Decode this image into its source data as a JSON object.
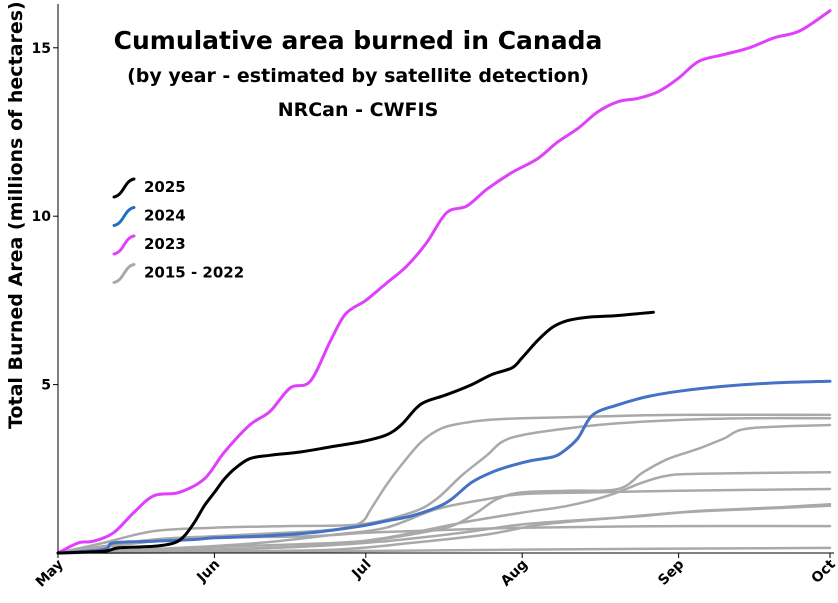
{
  "chart_data": {
    "type": "line",
    "title": "Cumulative area burned in Canada",
    "subtitle": "(by year - estimated by satellite detection)",
    "subtitle2": "NRCan - CWFIS",
    "xlabel": "",
    "ylabel": "Total Burned Area (millions of hectares)",
    "x_axis_type": "date",
    "xlim": [
      "05-01",
      "10-01"
    ],
    "ylim": [
      0,
      16.3
    ],
    "x_ticks": [
      {
        "label": "May",
        "date": "05-01"
      },
      {
        "label": "Jun",
        "date": "06-01"
      },
      {
        "label": "Jul",
        "date": "07-01"
      },
      {
        "label": "Aug",
        "date": "08-01"
      },
      {
        "label": "Sep",
        "date": "09-01"
      },
      {
        "label": "Oct",
        "date": "10-01"
      }
    ],
    "y_ticks": [
      {
        "label": "5",
        "value": 5
      },
      {
        "label": "10",
        "value": 10
      },
      {
        "label": "15",
        "value": 15
      }
    ],
    "grid": false,
    "legend_position": "upper-left",
    "legend": [
      {
        "label": "2025",
        "color": "#000000"
      },
      {
        "label": "2024",
        "color": "#1f6fbf"
      },
      {
        "label": "2023",
        "color": "#e040fb"
      },
      {
        "label": "2015 - 2022",
        "color": "#a9a9a9"
      }
    ],
    "series": [
      {
        "year": "2025",
        "color": "#000000",
        "x": [
          "05-01",
          "05-10",
          "05-13",
          "05-20",
          "05-24",
          "05-26",
          "05-28",
          "05-30",
          "06-01",
          "06-03",
          "06-05",
          "06-08",
          "06-12",
          "06-18",
          "06-24",
          "06-30",
          "07-05",
          "07-08",
          "07-11",
          "07-13",
          "07-17",
          "07-22",
          "07-26",
          "07-30",
          "08-01",
          "08-04",
          "08-07",
          "08-10",
          "08-14",
          "08-20",
          "08-27"
        ],
        "y": [
          0.0,
          0.05,
          0.15,
          0.2,
          0.3,
          0.5,
          0.9,
          1.4,
          1.8,
          2.2,
          2.5,
          2.8,
          2.9,
          3.0,
          3.15,
          3.3,
          3.5,
          3.8,
          4.3,
          4.5,
          4.7,
          5.0,
          5.3,
          5.5,
          5.8,
          6.3,
          6.7,
          6.9,
          7.0,
          7.05,
          7.15
        ]
      },
      {
        "year": "2024",
        "color": "#4472c4",
        "x": [
          "05-01",
          "05-10",
          "05-12",
          "05-20",
          "05-28",
          "06-01",
          "06-10",
          "06-20",
          "06-30",
          "07-05",
          "07-10",
          "07-15",
          "07-18",
          "07-22",
          "07-26",
          "07-30",
          "08-03",
          "08-07",
          "08-09",
          "08-12",
          "08-15",
          "08-20",
          "08-26",
          "09-01",
          "09-10",
          "09-20",
          "10-01"
        ],
        "y": [
          0.0,
          0.1,
          0.3,
          0.35,
          0.4,
          0.45,
          0.5,
          0.6,
          0.8,
          0.95,
          1.1,
          1.35,
          1.6,
          2.1,
          2.4,
          2.6,
          2.75,
          2.85,
          3.0,
          3.4,
          4.1,
          4.4,
          4.65,
          4.8,
          4.95,
          5.05,
          5.1
        ]
      },
      {
        "year": "2023",
        "color": "#e040fb",
        "x": [
          "05-01",
          "05-05",
          "05-08",
          "05-12",
          "05-16",
          "05-20",
          "05-25",
          "05-30",
          "06-03",
          "06-08",
          "06-12",
          "06-16",
          "06-20",
          "06-24",
          "06-27",
          "07-01",
          "07-05",
          "07-09",
          "07-13",
          "07-17",
          "07-21",
          "07-25",
          "07-30",
          "08-04",
          "08-08",
          "08-12",
          "08-16",
          "08-20",
          "08-24",
          "08-28",
          "09-01",
          "09-05",
          "09-10",
          "09-15",
          "09-20",
          "09-25",
          "10-01"
        ],
        "y": [
          0.0,
          0.3,
          0.35,
          0.6,
          1.2,
          1.7,
          1.8,
          2.2,
          3.0,
          3.8,
          4.2,
          4.9,
          5.1,
          6.3,
          7.1,
          7.5,
          8.0,
          8.5,
          9.2,
          10.1,
          10.3,
          10.8,
          11.3,
          11.7,
          12.2,
          12.6,
          13.1,
          13.4,
          13.5,
          13.7,
          14.1,
          14.6,
          14.8,
          15.0,
          15.3,
          15.5,
          16.1
        ]
      },
      {
        "year": "2015-2022 a",
        "color": "#a9a9a9",
        "x": [
          "05-01",
          "05-10",
          "05-20",
          "06-01",
          "06-15",
          "06-25",
          "06-30",
          "07-02",
          "07-05",
          "07-08",
          "07-12",
          "07-16",
          "07-20",
          "07-25",
          "08-01",
          "08-15",
          "09-01",
          "10-01"
        ],
        "y": [
          0.0,
          0.2,
          0.4,
          0.5,
          0.6,
          0.7,
          0.9,
          1.3,
          2.0,
          2.6,
          3.3,
          3.7,
          3.85,
          3.95,
          4.0,
          4.05,
          4.1,
          4.1
        ]
      },
      {
        "year": "2015-2022 b",
        "color": "#a9a9a9",
        "x": [
          "05-01",
          "05-10",
          "05-20",
          "06-01",
          "06-15",
          "06-30",
          "07-10",
          "07-15",
          "07-20",
          "07-25",
          "07-28",
          "08-01",
          "08-10",
          "08-20",
          "09-01",
          "09-15",
          "10-01"
        ],
        "y": [
          0.0,
          0.3,
          0.65,
          0.75,
          0.8,
          0.85,
          1.2,
          1.6,
          2.3,
          2.9,
          3.3,
          3.5,
          3.7,
          3.85,
          3.95,
          4.0,
          4.0
        ]
      },
      {
        "year": "2015-2022 c",
        "color": "#a9a9a9",
        "x": [
          "05-01",
          "05-20",
          "06-01",
          "06-20",
          "07-01",
          "07-10",
          "07-18",
          "07-23",
          "07-27",
          "08-01",
          "08-10",
          "08-20",
          "08-25",
          "08-30",
          "09-05",
          "09-10",
          "09-15",
          "10-01"
        ],
        "y": [
          0.0,
          0.05,
          0.1,
          0.2,
          0.35,
          0.55,
          0.8,
          1.2,
          1.6,
          1.8,
          1.85,
          1.9,
          2.4,
          2.8,
          3.1,
          3.4,
          3.7,
          3.8
        ]
      },
      {
        "year": "2015-2022 d",
        "color": "#a9a9a9",
        "x": [
          "05-01",
          "05-20",
          "06-05",
          "06-25",
          "07-05",
          "07-20",
          "08-01",
          "08-10",
          "08-18",
          "08-25",
          "08-30",
          "09-05",
          "10-01"
        ],
        "y": [
          0.0,
          0.1,
          0.2,
          0.3,
          0.45,
          0.9,
          1.2,
          1.4,
          1.7,
          2.1,
          2.3,
          2.35,
          2.4
        ]
      },
      {
        "year": "2015-2022 e",
        "color": "#a9a9a9",
        "x": [
          "05-01",
          "05-25",
          "06-10",
          "06-25",
          "07-05",
          "07-15",
          "07-25",
          "08-01",
          "08-15",
          "09-01",
          "10-01"
        ],
        "y": [
          0.0,
          0.15,
          0.3,
          0.55,
          0.75,
          1.3,
          1.6,
          1.75,
          1.8,
          1.85,
          1.9
        ]
      },
      {
        "year": "2015-2022 f",
        "color": "#a9a9a9",
        "x": [
          "05-01",
          "06-01",
          "06-20",
          "07-05",
          "07-20",
          "08-01",
          "08-15",
          "08-25",
          "09-05",
          "09-20",
          "10-01"
        ],
        "y": [
          0.0,
          0.1,
          0.2,
          0.35,
          0.6,
          0.85,
          1.0,
          1.1,
          1.25,
          1.35,
          1.45
        ]
      },
      {
        "year": "2015-2022 g",
        "color": "#a9a9a9",
        "x": [
          "05-01",
          "06-01",
          "06-25",
          "07-10",
          "07-25",
          "08-05",
          "08-20",
          "09-01",
          "09-15",
          "10-01"
        ],
        "y": [
          0.0,
          0.05,
          0.1,
          0.3,
          0.55,
          0.85,
          1.05,
          1.2,
          1.3,
          1.4
        ]
      },
      {
        "year": "2015-2022 h",
        "color": "#a9a9a9",
        "x": [
          "05-01",
          "05-20",
          "06-01",
          "06-20",
          "07-01",
          "07-10",
          "07-20",
          "08-01",
          "09-01",
          "10-01"
        ],
        "y": [
          0.0,
          0.35,
          0.45,
          0.5,
          0.6,
          0.65,
          0.7,
          0.75,
          0.8,
          0.8
        ]
      },
      {
        "year": "2015-2022 i",
        "color": "#a9a9a9",
        "x": [
          "05-01",
          "06-01",
          "07-01",
          "08-01",
          "09-01",
          "10-01"
        ],
        "y": [
          0.0,
          0.03,
          0.06,
          0.1,
          0.13,
          0.15
        ]
      }
    ]
  }
}
